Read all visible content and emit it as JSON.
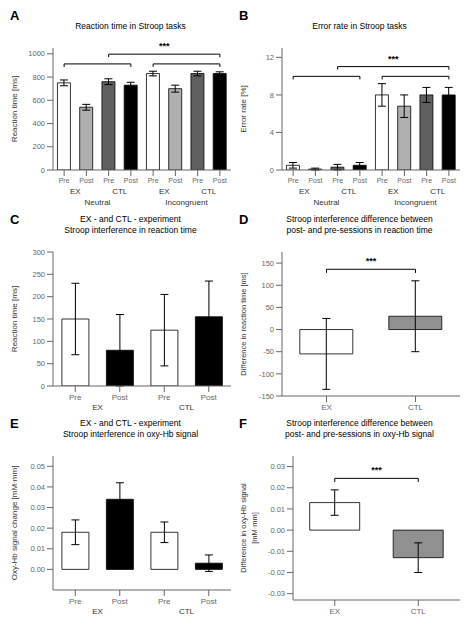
{
  "chart_data": [
    {
      "type": "bar",
      "title": "Reaction time in Stroop tasks",
      "ylabel": "Reaction time [ms]",
      "categories": [
        "Pre",
        "Post",
        "Pre",
        "Post",
        "Pre",
        "Post",
        "Pre",
        "Post"
      ],
      "values": [
        750,
        540,
        760,
        730,
        830,
        700,
        830,
        830
      ],
      "errors": [
        25,
        25,
        25,
        25,
        20,
        30,
        20,
        15
      ],
      "colors": [
        "white",
        "#b0b0b0",
        "#606060",
        "black",
        "white",
        "#b0b0b0",
        "#606060",
        "black"
      ],
      "ylim": [
        0,
        1050
      ],
      "yticks": [
        0,
        200,
        400,
        600,
        800,
        1000
      ],
      "annotations": [
        "A",
        "EX",
        "CTL",
        "Neutral",
        "EX",
        "CTL",
        "Incongruent",
        "***"
      ]
    },
    {
      "type": "bar",
      "title": "Error rate in Stroop tasks",
      "ylabel": "Error rate [%]",
      "categories": [
        "Pre",
        "Post",
        "Pre",
        "Post",
        "Pre",
        "Post",
        "Pre",
        "Post"
      ],
      "values": [
        0.5,
        0.1,
        0.3,
        0.5,
        8.0,
        6.8,
        8.0,
        8.0
      ],
      "errors": [
        0.3,
        0.1,
        0.3,
        0.3,
        1.2,
        1.2,
        0.8,
        0.8
      ],
      "colors": [
        "white",
        "#b0b0b0",
        "#606060",
        "black",
        "white",
        "#b0b0b0",
        "#606060",
        "black"
      ],
      "ylim": [
        0,
        13
      ],
      "yticks": [
        0,
        4,
        8,
        12
      ],
      "annotations": [
        "B",
        "EX",
        "CTL",
        "Neutral",
        "EX",
        "CTL",
        "Incongruent",
        "***"
      ]
    },
    {
      "type": "bar",
      "title": "EX - and CTL - experiment\nStroop interference in reaction time",
      "ylabel": "Reaction time [ms]",
      "categories": [
        "Pre",
        "Post",
        "Pre",
        "Post"
      ],
      "values": [
        150,
        80,
        125,
        155
      ],
      "errors": [
        80,
        80,
        80,
        80
      ],
      "colors": [
        "white",
        "black",
        "white",
        "black"
      ],
      "ylim": [
        0,
        300
      ],
      "yticks": [
        0,
        50,
        100,
        150,
        200,
        250,
        300
      ],
      "annotations": [
        "C",
        "EX",
        "CTL"
      ]
    },
    {
      "type": "bar",
      "title": "Stroop interference difference between\npost- and pre-sessions in reaction time",
      "ylabel": "Difference in reaction time [ms]",
      "categories": [
        "EX",
        "CTL"
      ],
      "values": [
        -55,
        30
      ],
      "errors": [
        80,
        80
      ],
      "colors": [
        "white",
        "#909090"
      ],
      "ylim": [
        -150,
        175
      ],
      "yticks": [
        -150,
        -100,
        -50,
        0,
        50,
        100,
        150
      ],
      "annotations": [
        "D",
        "***"
      ]
    },
    {
      "type": "bar",
      "title": "EX - and CTL - experiment\nStroop interference in oxy-Hb signal",
      "ylabel": "Oxy-Hb signal change [mM·mm]",
      "categories": [
        "Pre",
        "Post",
        "Pre",
        "Post"
      ],
      "values": [
        0.018,
        0.034,
        0.018,
        0.003
      ],
      "errors": [
        0.006,
        0.008,
        0.005,
        0.004
      ],
      "colors": [
        "white",
        "black",
        "white",
        "black"
      ],
      "ylim": [
        -0.01,
        0.055
      ],
      "yticks": [
        {
          "value": 0,
          "label": "0.00"
        },
        0.01,
        0.02,
        0.03,
        0.04,
        0.05
      ],
      "annotations": [
        "E",
        "EX",
        "CTL"
      ]
    },
    {
      "type": "bar",
      "title": "Stroop interference difference between\npost- and pre-sessions in oxy-Hb signal",
      "ylabel": "Difference in oxy-Hb signal\n[mM·mm]",
      "categories": [
        "EX",
        "CTL"
      ],
      "values": [
        0.013,
        -0.013
      ],
      "errors": [
        0.006,
        0.007
      ],
      "colors": [
        "white",
        "#909090"
      ],
      "ylim": [
        -0.033,
        0.035
      ],
      "yticks": [
        -0.03,
        -0.02,
        -0.01,
        {
          "value": 0,
          "label": "0.00"
        },
        0.01,
        0.02,
        0.03
      ],
      "annotations": [
        "F",
        "***"
      ]
    }
  ]
}
